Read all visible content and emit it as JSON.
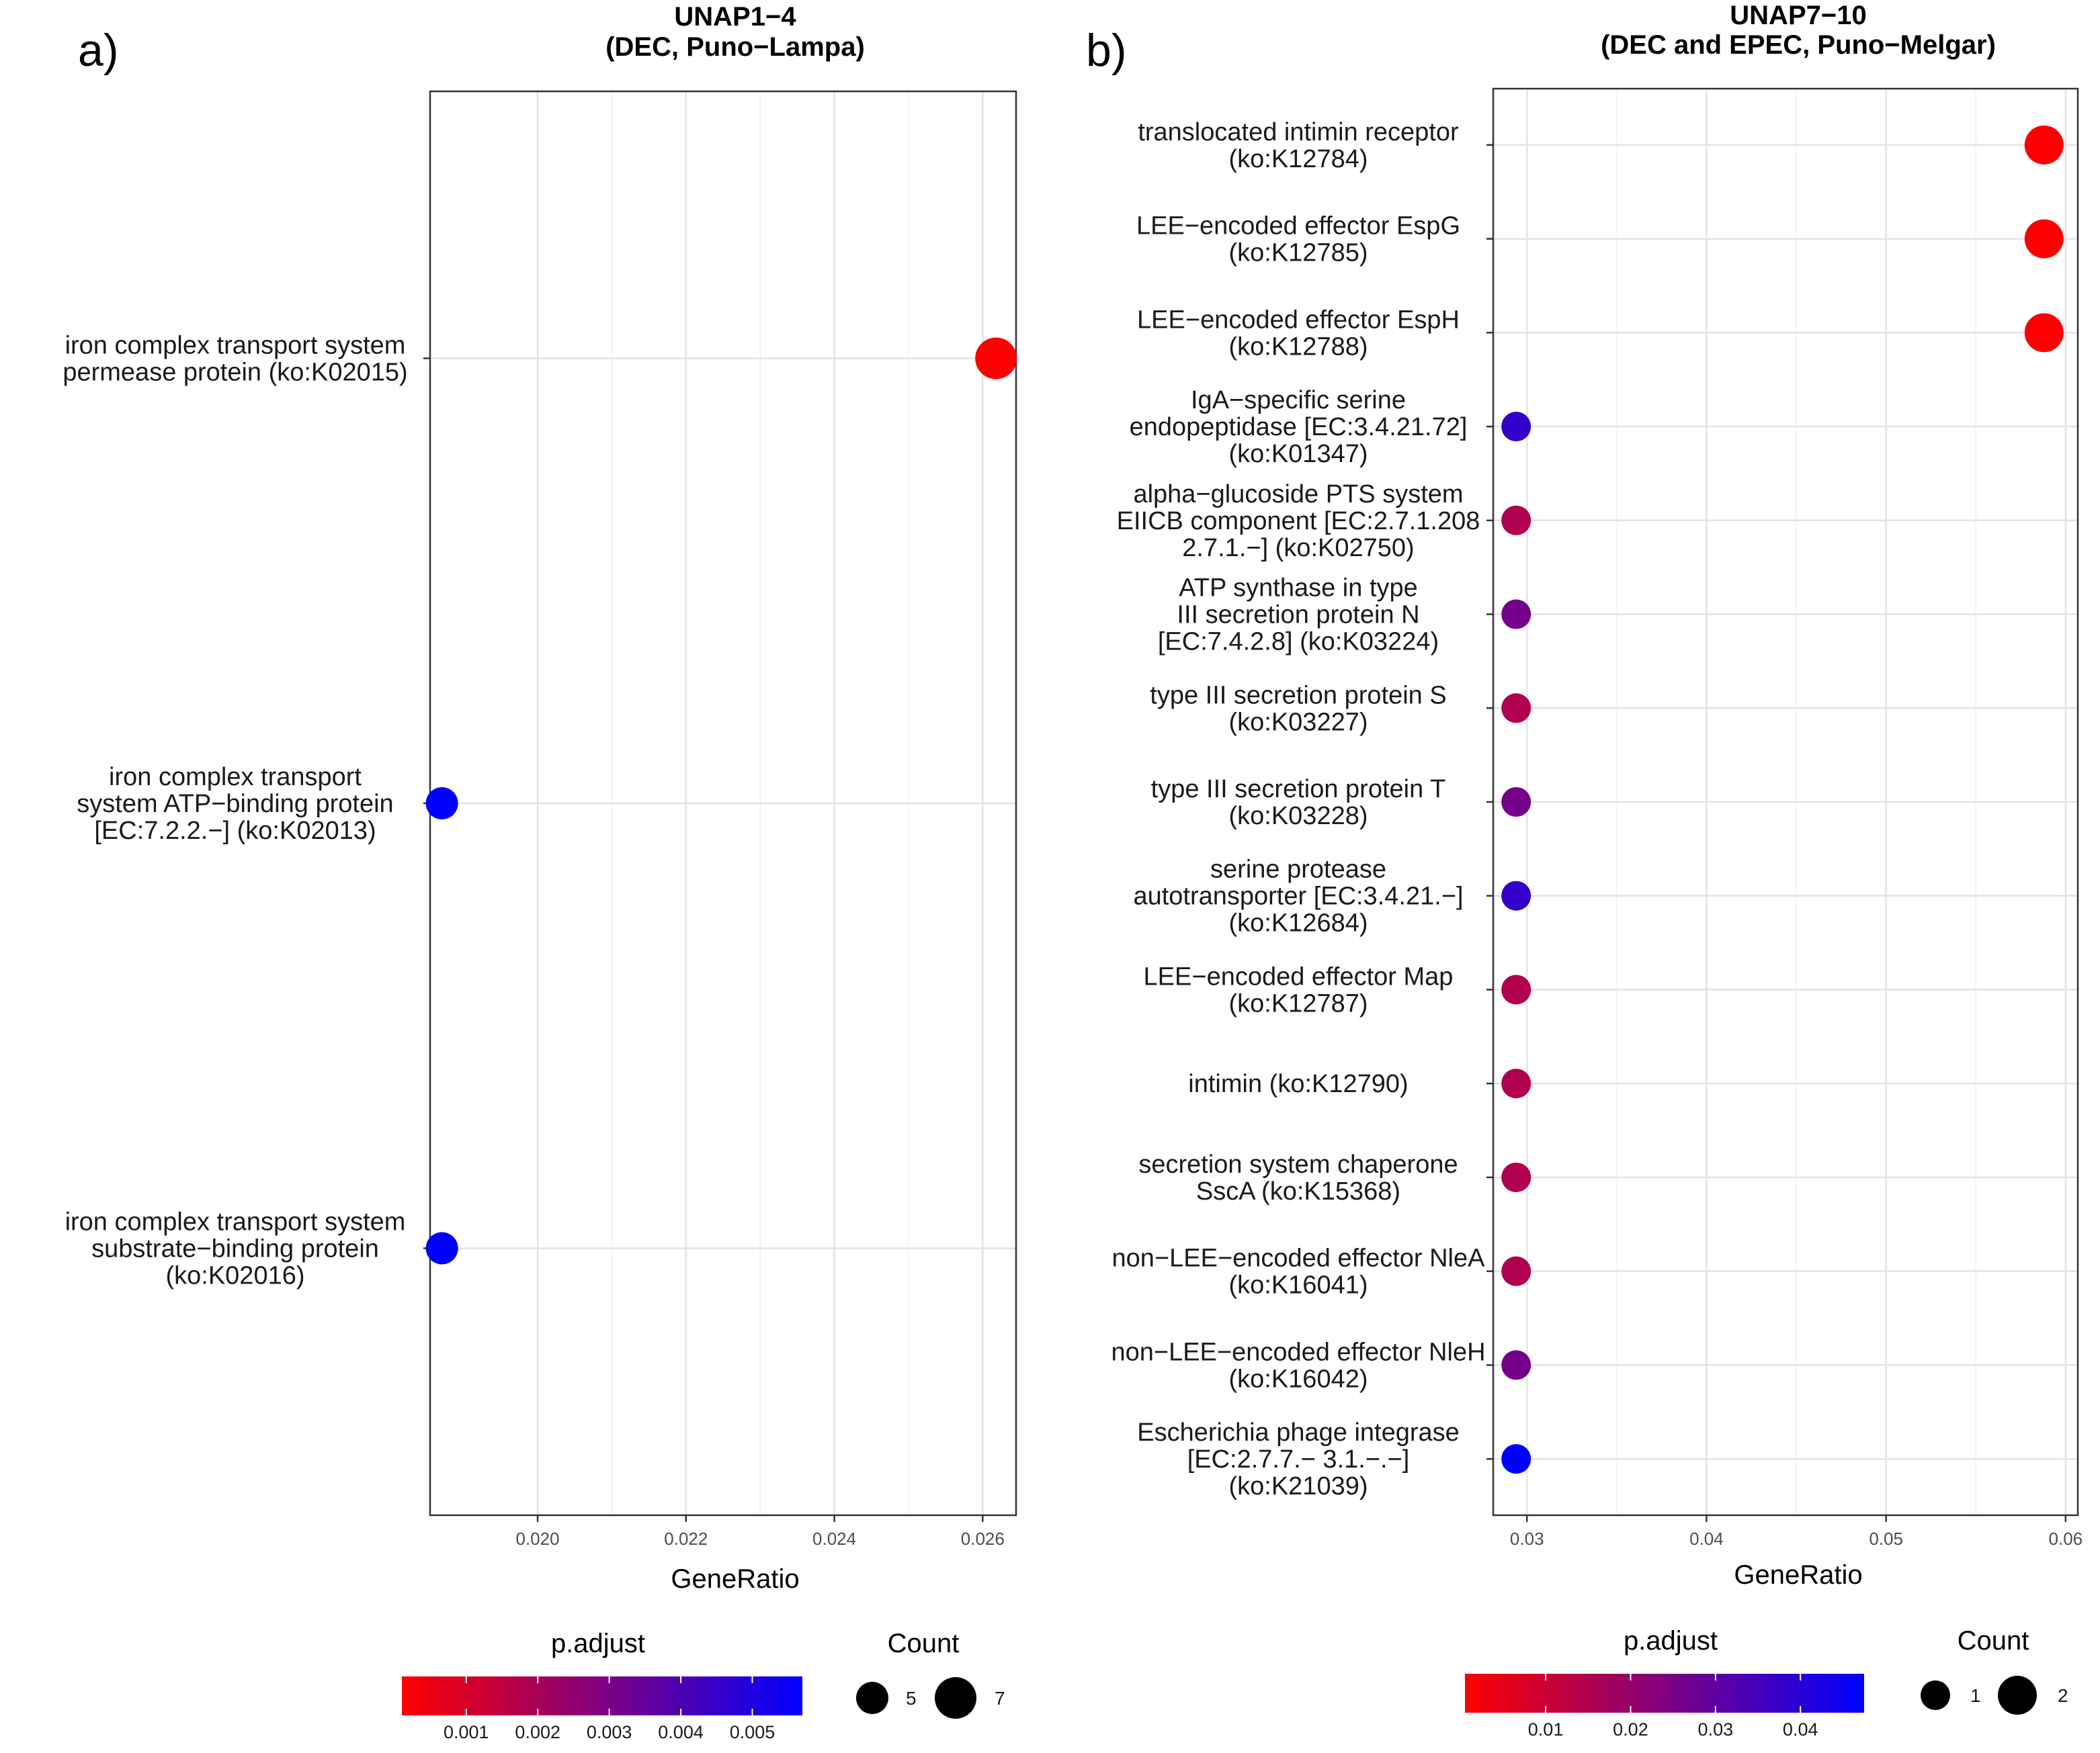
{
  "chart_data": [
    {
      "panel_label": "a)",
      "type": "scatter",
      "title": "UNAP1−4",
      "subtitle": "(DEC, Puno−Lampa)",
      "xlabel": "GeneRatio",
      "ylabel": "",
      "xlim": [
        0.01855,
        0.02645
      ],
      "xticks": [
        0.02,
        0.022,
        0.024,
        0.026
      ],
      "xtick_labels": [
        "0.020",
        "0.022",
        "0.024",
        "0.026"
      ],
      "grid": true,
      "categories": [
        [
          "iron complex transport system",
          "permease protein (ko:K02015)"
        ],
        [
          "iron complex transport",
          "system ATP−binding protein",
          "[EC:7.2.2.−] (ko:K02013)"
        ],
        [
          "iron complex transport system",
          "substrate−binding protein",
          "(ko:K02016)"
        ]
      ],
      "points": [
        {
          "x": 0.02618,
          "count": 7,
          "p_adjust": 0.0001
        },
        {
          "x": 0.01871,
          "count": 5,
          "p_adjust": 0.0057
        },
        {
          "x": 0.01871,
          "count": 5,
          "p_adjust": 0.0057
        }
      ],
      "color_legend": {
        "title": "p.adjust",
        "domain": [
          0.0001,
          0.0057
        ],
        "ticks": [
          0.001,
          0.002,
          0.003,
          0.004,
          0.005
        ],
        "tick_labels": [
          "0.001",
          "0.002",
          "0.003",
          "0.004",
          "0.005"
        ],
        "low_color": "#ff0000",
        "high_color": "#0000ff"
      },
      "size_legend": {
        "title": "Count",
        "range": [
          5,
          7
        ],
        "values": [
          5,
          7
        ],
        "labels": [
          "5",
          "7"
        ]
      }
    },
    {
      "panel_label": "b)",
      "type": "scatter",
      "title": "UNAP7−10",
      "subtitle": "(DEC and EPEC, Puno−Melgar)",
      "xlabel": "GeneRatio",
      "ylabel": "",
      "xlim": [
        0.02812,
        0.06068
      ],
      "xticks": [
        0.03,
        0.04,
        0.05,
        0.06
      ],
      "xtick_labels": [
        "0.03",
        "0.04",
        "0.05",
        "0.06"
      ],
      "grid": true,
      "categories": [
        [
          "translocated intimin receptor",
          "(ko:K12784)"
        ],
        [
          "LEE−encoded effector EspG",
          "(ko:K12785)"
        ],
        [
          "LEE−encoded effector EspH",
          "(ko:K12788)"
        ],
        [
          "IgA−specific serine",
          "endopeptidase [EC:3.4.21.72]",
          "(ko:K01347)"
        ],
        [
          "alpha−glucoside PTS system",
          "EIICB component [EC:2.7.1.208",
          "2.7.1.−] (ko:K02750)"
        ],
        [
          "ATP synthase in type",
          "III secretion protein N",
          "[EC:7.4.2.8] (ko:K03224)"
        ],
        [
          "type III secretion protein S",
          "(ko:K03227)"
        ],
        [
          "type III secretion protein T",
          "(ko:K03228)"
        ],
        [
          "serine protease",
          "autotransporter [EC:3.4.21.−]",
          "(ko:K12684)"
        ],
        [
          "LEE−encoded effector Map",
          "(ko:K12787)"
        ],
        [
          "intimin (ko:K12790)"
        ],
        [
          "secretion system chaperone",
          "SscA (ko:K15368)"
        ],
        [
          "non−LEE−encoded effector NleA",
          "(ko:K16041)"
        ],
        [
          "non−LEE−encoded effector NleH",
          "(ko:K16042)"
        ],
        [
          "Escherichia phage integrase",
          "[EC:2.7.7.− 3.1.−.−]",
          "(ko:K21039)"
        ]
      ],
      "points": [
        {
          "x": 0.0588,
          "count": 2,
          "p_adjust": 0.0005
        },
        {
          "x": 0.0588,
          "count": 2,
          "p_adjust": 0.0005
        },
        {
          "x": 0.0588,
          "count": 2,
          "p_adjust": 0.0005
        },
        {
          "x": 0.0294,
          "count": 1,
          "p_adjust": 0.038
        },
        {
          "x": 0.0294,
          "count": 1,
          "p_adjust": 0.015
        },
        {
          "x": 0.0294,
          "count": 1,
          "p_adjust": 0.026
        },
        {
          "x": 0.0294,
          "count": 1,
          "p_adjust": 0.015
        },
        {
          "x": 0.0294,
          "count": 1,
          "p_adjust": 0.026
        },
        {
          "x": 0.0294,
          "count": 1,
          "p_adjust": 0.038
        },
        {
          "x": 0.0294,
          "count": 1,
          "p_adjust": 0.015
        },
        {
          "x": 0.0294,
          "count": 1,
          "p_adjust": 0.015
        },
        {
          "x": 0.0294,
          "count": 1,
          "p_adjust": 0.015
        },
        {
          "x": 0.0294,
          "count": 1,
          "p_adjust": 0.015
        },
        {
          "x": 0.0294,
          "count": 1,
          "p_adjust": 0.026
        },
        {
          "x": 0.0294,
          "count": 1,
          "p_adjust": 0.0475
        }
      ],
      "color_legend": {
        "title": "p.adjust",
        "domain": [
          0.0005,
          0.0475
        ],
        "ticks": [
          0.01,
          0.02,
          0.03,
          0.04
        ],
        "tick_labels": [
          "0.01",
          "0.02",
          "0.03",
          "0.04"
        ],
        "low_color": "#ff0000",
        "high_color": "#0000ff"
      },
      "size_legend": {
        "title": "Count",
        "range": [
          1,
          2
        ],
        "values": [
          1,
          2
        ],
        "labels": [
          "1",
          "2"
        ]
      }
    }
  ]
}
